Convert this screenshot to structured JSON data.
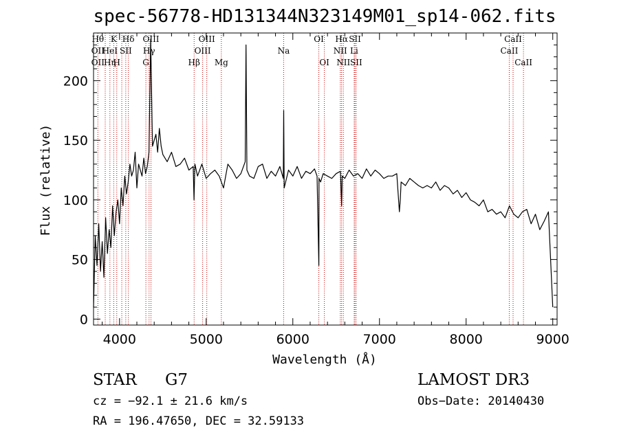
{
  "chart_data": {
    "type": "line",
    "title": "spec-56778-HD131344N323149M01_sp14-062.fits",
    "xlabel": "Wavelength (Å)",
    "ylabel": "Flux (relative)",
    "xlim": [
      3700,
      9050
    ],
    "ylim": [
      -5,
      240
    ],
    "xticks": [
      4000,
      5000,
      6000,
      7000,
      8000,
      9000
    ],
    "yticks": [
      0,
      50,
      100,
      150,
      200
    ],
    "grid": false,
    "line_color": "#000000",
    "marker_color": "#cc0000",
    "series": [
      {
        "x": [
          3700,
          3720,
          3740,
          3760,
          3780,
          3800,
          3820,
          3840,
          3860,
          3880,
          3900,
          3920,
          3940,
          3960,
          3980,
          4000,
          4020,
          4040,
          4060,
          4080,
          4100,
          4120,
          4140,
          4160,
          4180,
          4200,
          4220,
          4240,
          4260,
          4280,
          4300,
          4320,
          4340,
          4360,
          4380,
          4400,
          4420,
          4440,
          4460,
          4480,
          4500,
          4550,
          4600,
          4650,
          4700,
          4750,
          4800,
          4850,
          4860,
          4870,
          4900,
          4950,
          5000,
          5050,
          5100,
          5150,
          5200,
          5250,
          5300,
          5350,
          5400,
          5450,
          5460,
          5470,
          5500,
          5550,
          5600,
          5650,
          5700,
          5750,
          5800,
          5850,
          5890,
          5895,
          5900,
          5950,
          6000,
          6050,
          6100,
          6150,
          6200,
          6250,
          6280,
          6300,
          6301,
          6302,
          6320,
          6350,
          6400,
          6450,
          6500,
          6550,
          6563,
          6570,
          6600,
          6650,
          6700,
          6750,
          6800,
          6850,
          6900,
          6950,
          7000,
          7050,
          7100,
          7150,
          7200,
          7230,
          7240,
          7250,
          7300,
          7350,
          7400,
          7450,
          7500,
          7550,
          7600,
          7650,
          7700,
          7750,
          7800,
          7850,
          7900,
          7950,
          8000,
          8050,
          8100,
          8150,
          8200,
          8250,
          8300,
          8350,
          8400,
          8450,
          8500,
          8550,
          8600,
          8650,
          8700,
          8750,
          8800,
          8850,
          8900,
          8950,
          9000
        ],
        "y": [
          10,
          70,
          45,
          80,
          40,
          65,
          35,
          85,
          55,
          75,
          60,
          95,
          70,
          90,
          100,
          80,
          110,
          95,
          120,
          105,
          115,
          130,
          120,
          125,
          140,
          110,
          130,
          125,
          120,
          135,
          122,
          128,
          140,
          235,
          145,
          150,
          155,
          140,
          160,
          145,
          138,
          132,
          140,
          128,
          130,
          135,
          125,
          128,
          100,
          130,
          120,
          130,
          118,
          122,
          125,
          120,
          110,
          130,
          125,
          118,
          122,
          132,
          230,
          125,
          120,
          118,
          128,
          130,
          118,
          124,
          120,
          128,
          118,
          175,
          110,
          125,
          120,
          128,
          118,
          124,
          122,
          126,
          120,
          45,
          60,
          118,
          115,
          122,
          120,
          118,
          122,
          124,
          95,
          120,
          118,
          125,
          120,
          122,
          118,
          126,
          120,
          125,
          122,
          118,
          120,
          120,
          122,
          90,
          100,
          115,
          112,
          118,
          115,
          112,
          110,
          112,
          110,
          115,
          108,
          112,
          110,
          105,
          108,
          102,
          106,
          100,
          98,
          95,
          100,
          90,
          92,
          88,
          90,
          85,
          95,
          88,
          85,
          90,
          92,
          80,
          88,
          75,
          82,
          90,
          10
        ]
      }
    ],
    "line_markers": [
      {
        "wavelength": 3750,
        "labels": [
          "Hθ",
          "OII",
          "OII"
        ]
      },
      {
        "wavelength": 3835,
        "labels": [
          "",
          "",
          ""
        ]
      },
      {
        "wavelength": 3889,
        "labels": [
          "",
          "HeI",
          "Hη"
        ]
      },
      {
        "wavelength": 3933,
        "labels": [
          "K",
          "",
          ""
        ]
      },
      {
        "wavelength": 3968,
        "labels": [
          "",
          "",
          "H"
        ]
      },
      {
        "wavelength": 4026,
        "labels": [
          "",
          "",
          ""
        ]
      },
      {
        "wavelength": 4072,
        "labels": [
          "",
          "SII",
          ""
        ]
      },
      {
        "wavelength": 4102,
        "labels": [
          "Hδ",
          "",
          ""
        ]
      },
      {
        "wavelength": 4304,
        "labels": [
          "",
          "",
          "G"
        ]
      },
      {
        "wavelength": 4341,
        "labels": [
          "",
          "Hγ",
          ""
        ]
      },
      {
        "wavelength": 4363,
        "labels": [
          "OIII",
          "",
          ""
        ]
      },
      {
        "wavelength": 4861,
        "labels": [
          "",
          "",
          "Hβ"
        ]
      },
      {
        "wavelength": 4959,
        "labels": [
          "",
          "OIII",
          ""
        ]
      },
      {
        "wavelength": 5007,
        "labels": [
          "OIII",
          "",
          ""
        ]
      },
      {
        "wavelength": 5175,
        "labels": [
          "",
          "",
          "Mg"
        ]
      },
      {
        "wavelength": 5894,
        "labels": [
          "",
          "Na",
          ""
        ]
      },
      {
        "wavelength": 6300,
        "labels": [
          "OI",
          "",
          ""
        ]
      },
      {
        "wavelength": 6364,
        "labels": [
          "",
          "",
          "OI"
        ]
      },
      {
        "wavelength": 6548,
        "labels": [
          "",
          "NII",
          ""
        ]
      },
      {
        "wavelength": 6563,
        "labels": [
          "Hα",
          "",
          ""
        ]
      },
      {
        "wavelength": 6583,
        "labels": [
          "",
          "",
          "NII"
        ]
      },
      {
        "wavelength": 6708,
        "labels": [
          "",
          "Li",
          ""
        ]
      },
      {
        "wavelength": 6717,
        "labels": [
          "SII",
          "",
          ""
        ]
      },
      {
        "wavelength": 6731,
        "labels": [
          "",
          "",
          "SII"
        ]
      },
      {
        "wavelength": 8498,
        "labels": [
          "",
          "CaII",
          ""
        ]
      },
      {
        "wavelength": 8542,
        "labels": [
          "CaII",
          "",
          ""
        ]
      },
      {
        "wavelength": 8662,
        "labels": [
          "",
          "",
          "CaII"
        ]
      }
    ]
  },
  "info": {
    "class": "STAR",
    "subclass": "G7",
    "survey": "LAMOST DR3",
    "cz": "cz = −92.1 ± 21.6 km/s",
    "obs_date": "Obs−Date: 20140430",
    "coords": "RA = 196.47650, DEC =  32.59133"
  }
}
